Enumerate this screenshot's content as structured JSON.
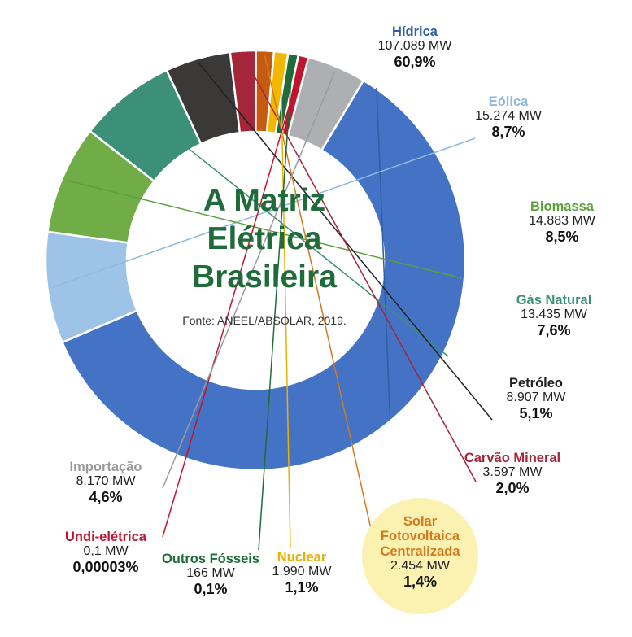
{
  "chart_data": {
    "type": "pie",
    "title_lines": [
      "A Matriz",
      "Elétrica",
      "Brasileira"
    ],
    "source": "Fonte: ANEEL/ABSOLAR, 2019.",
    "slices": [
      {
        "name": "Hídrica",
        "mw": "107.089 MW",
        "pct_label": "60,9%",
        "value": 60.9,
        "color": "#4472c4",
        "label_color": "#2e5fa3"
      },
      {
        "name": "Eólica",
        "mw": "15.274 MW",
        "pct_label": "8,7%",
        "value": 8.7,
        "color": "#9dc3e6",
        "label_color": "#8fb8e0"
      },
      {
        "name": "Biomassa",
        "mw": "14.883 MW",
        "pct_label": "8,5%",
        "value": 8.5,
        "color": "#70ad47",
        "label_color": "#5aa13a"
      },
      {
        "name": "Gás Natural",
        "mw": "13.435 MW",
        "pct_label": "7,6%",
        "value": 7.6,
        "color": "#3d9078",
        "label_color": "#3d9078"
      },
      {
        "name": "Petróleo",
        "mw": "8.907 MW",
        "pct_label": "5,1%",
        "value": 5.1,
        "color": "#3b3838",
        "label_color": "#222222"
      },
      {
        "name": "Carvão Mineral",
        "mw": "3.597 MW",
        "pct_label": "2,0%",
        "value": 2.0,
        "color": "#a5263a",
        "label_color": "#a5263a"
      },
      {
        "name": "Solar Fotovoltaica Centralizada",
        "mw": "2.454 MW",
        "pct_label": "1,4%",
        "value": 1.4,
        "color": "#c55a11",
        "label_color": "#d37a1e"
      },
      {
        "name": "Nuclear",
        "mw": "1.990 MW",
        "pct_label": "1,1%",
        "value": 1.1,
        "color": "#f2b800",
        "label_color": "#e9b100"
      },
      {
        "name": "Outros Fósseis",
        "mw": "166 MW",
        "pct_label": "0,1%",
        "value": 0.1,
        "color": "#1f6b3a",
        "label_color": "#1f6b3a"
      },
      {
        "name": "Undi-elétrica",
        "mw": "0,1 MW",
        "pct_label": "0,00003%",
        "value": 3e-05,
        "color": "#c0152f",
        "label_color": "#c0152f"
      },
      {
        "name": "Importação",
        "mw": "8.170 MW",
        "pct_label": "4,6%",
        "value": 4.6,
        "color": "#adafb2",
        "label_color": "#9a9a9a"
      }
    ]
  }
}
